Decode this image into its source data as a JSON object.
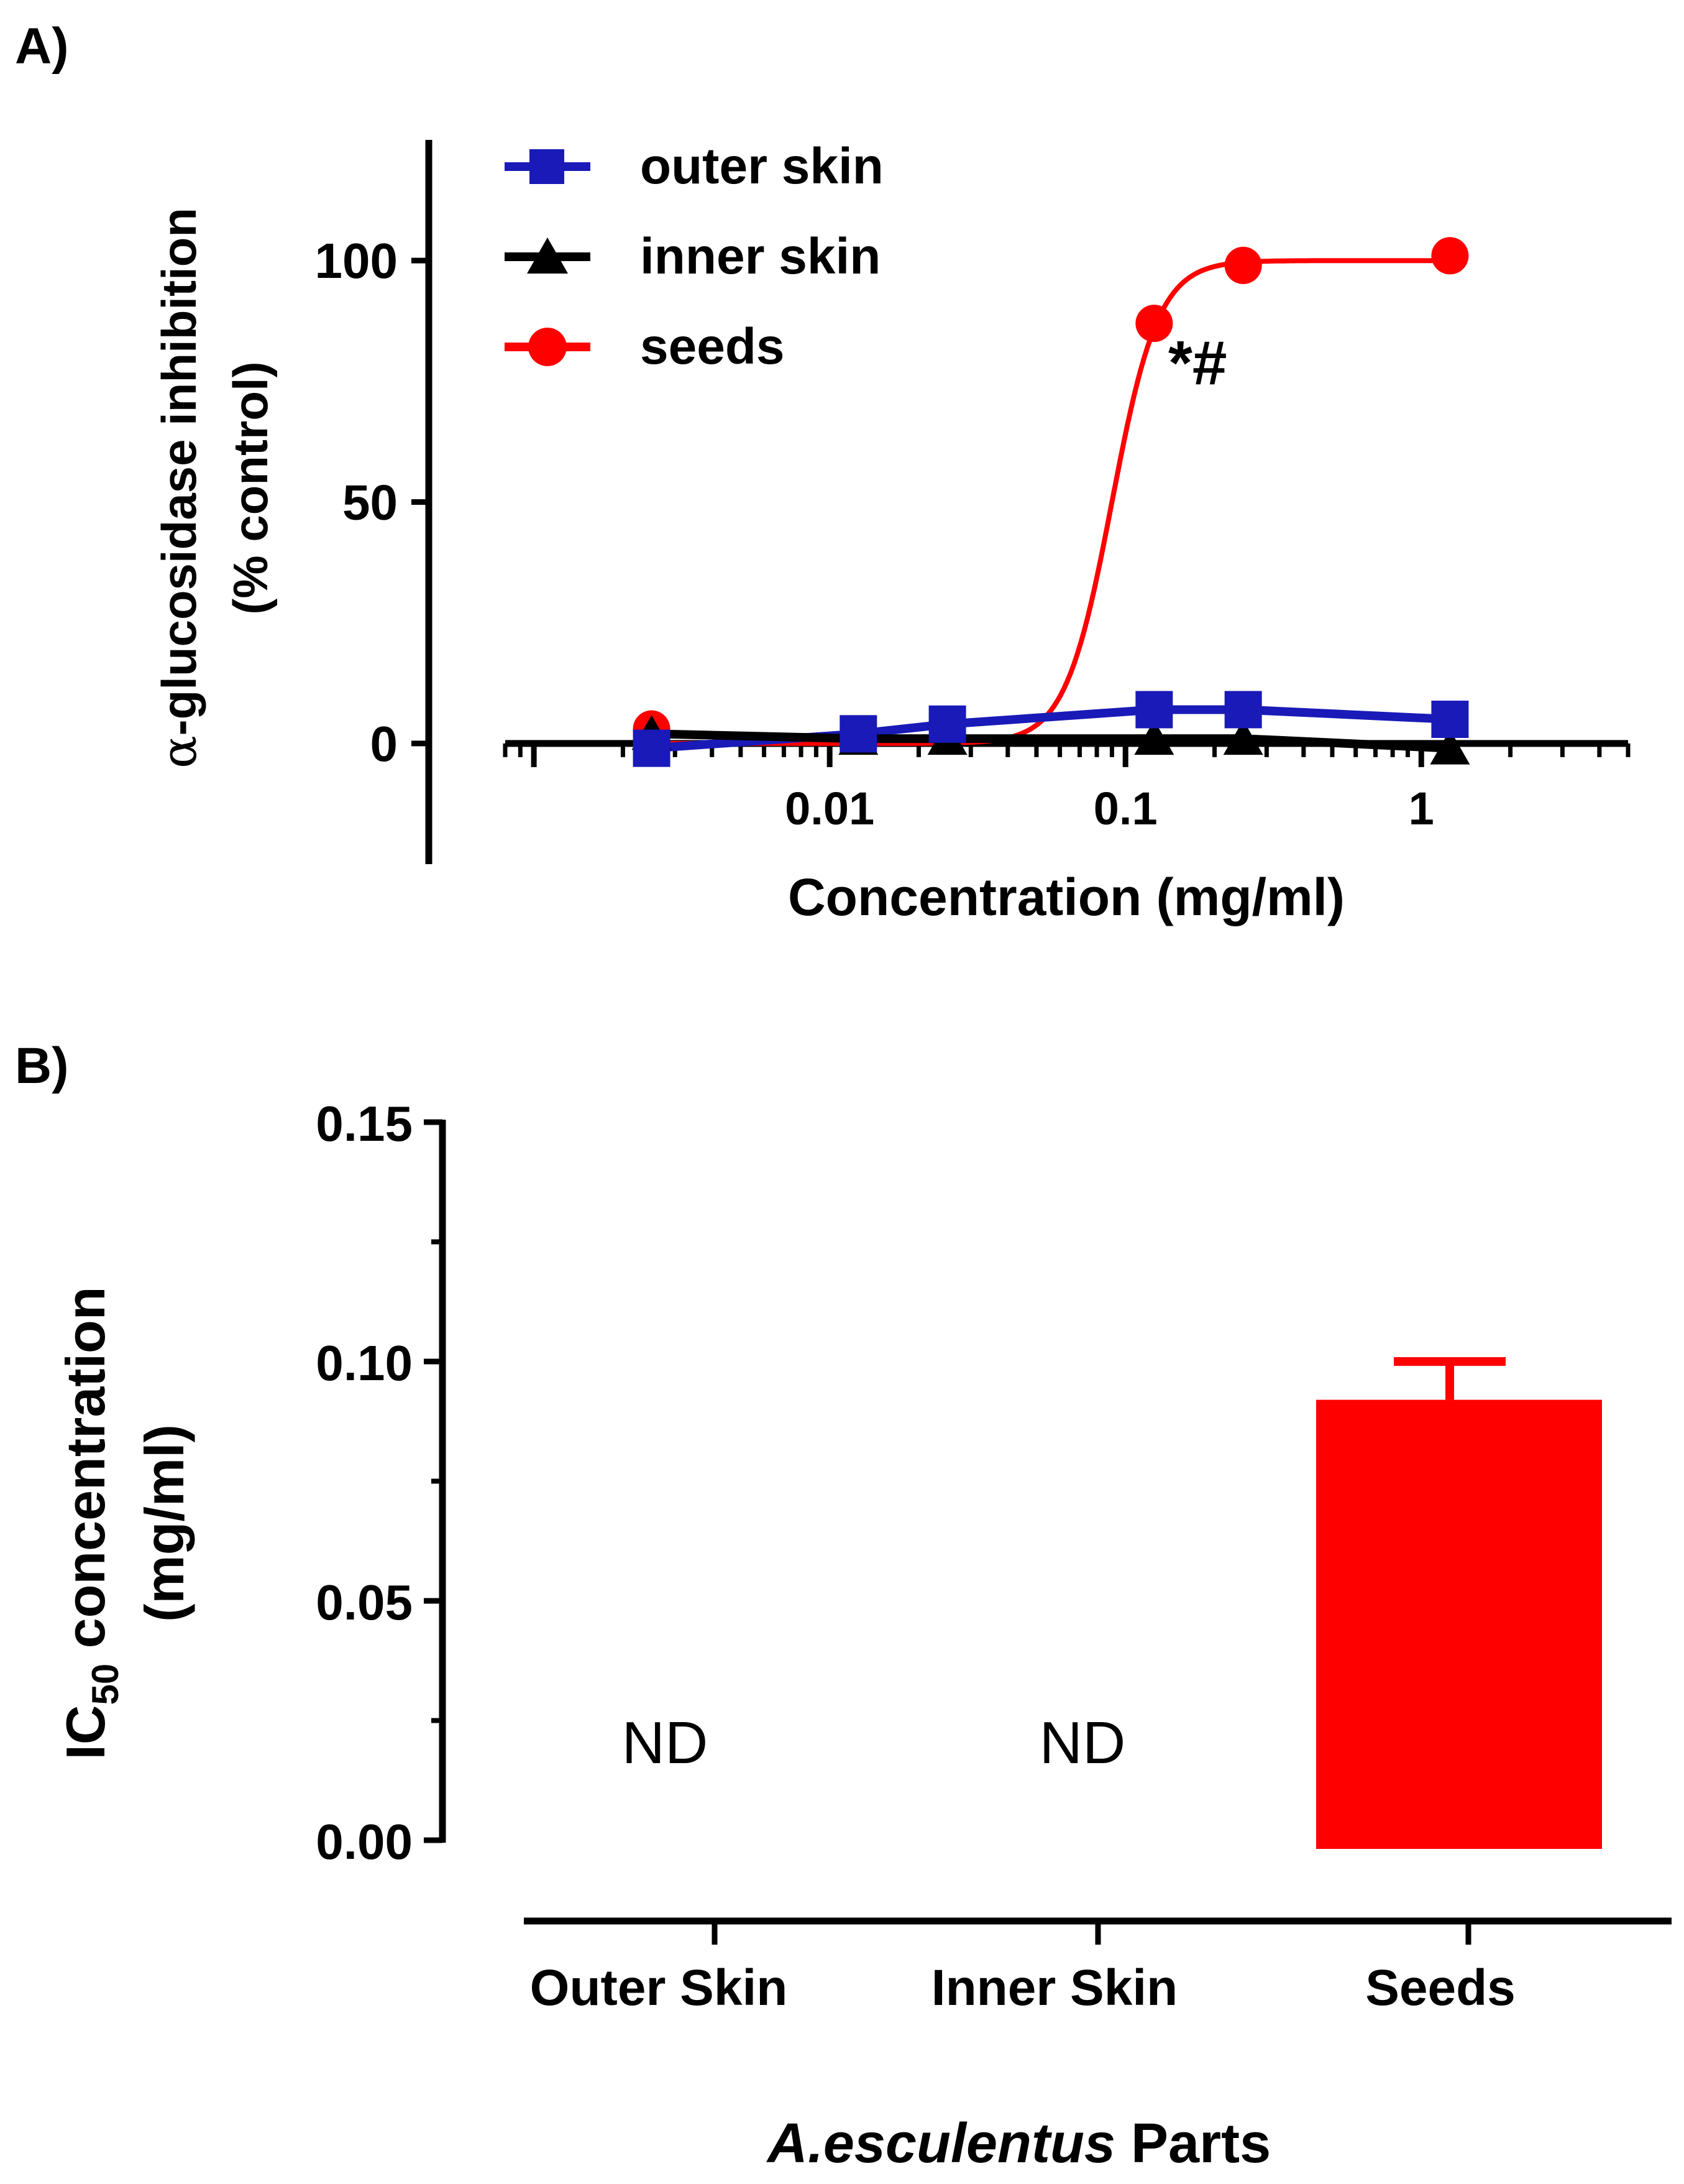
{
  "panel_a_label": "A)",
  "panel_b_label": "B)",
  "chart_data": [
    {
      "type": "line",
      "x_scale": "log",
      "xlabel": "Concentration (mg/ml)",
      "ylabel_line1_symbol": "α",
      "ylabel_line1_text": "-glucosidase inhibition",
      "ylabel_line2": "(% control)",
      "xlim": [
        0.0008,
        5
      ],
      "ylim": [
        -25,
        125
      ],
      "x_ticks": [
        0.01,
        0.1,
        1
      ],
      "x_tick_labels": [
        "0.01",
        "0.1",
        "1"
      ],
      "y_ticks": [
        0,
        50,
        100
      ],
      "y_tick_labels": [
        "0",
        "50",
        "100"
      ],
      "series": [
        {
          "name": "outer skin",
          "color": "#1a1ab8",
          "marker": "square",
          "x": [
            0.0025,
            0.0125,
            0.025,
            0.125,
            0.25,
            1.25
          ],
          "y": [
            -1,
            2,
            4,
            7,
            7,
            5
          ]
        },
        {
          "name": "inner skin",
          "color": "#000000",
          "marker": "triangle",
          "x": [
            0.0025,
            0.0125,
            0.025,
            0.125,
            0.25,
            1.25
          ],
          "y": [
            2,
            1,
            1,
            1,
            1,
            -1
          ]
        },
        {
          "name": "seeds",
          "color": "#ff0000",
          "marker": "circle",
          "x": [
            0.0025,
            0.125,
            0.25,
            1.25
          ],
          "y": [
            3,
            87,
            99,
            101
          ],
          "fit": {
            "model": "sigmoid",
            "bottom": 0,
            "top": 100,
            "ec50": 0.09,
            "hill": 5.5
          }
        }
      ],
      "annotation": "*#",
      "legend_position": "top-left"
    },
    {
      "type": "bar",
      "categories": [
        "Outer Skin",
        "Inner Skin",
        "Seeds"
      ],
      "values": [
        null,
        null,
        0.092
      ],
      "error": [
        null,
        null,
        0.008
      ],
      "bar_labels": [
        "ND",
        "ND",
        ""
      ],
      "colors": [
        "#ff0000",
        "#ff0000",
        "#ff0000"
      ],
      "ylabel_prefix": "IC",
      "ylabel_sub": "50",
      "ylabel_rest": " concentration",
      "ylabel_line2": "(mg/ml)",
      "xlabel_italic": "A.esculentus",
      "xlabel_rest": " Parts",
      "ylim": [
        0,
        0.15
      ],
      "y_ticks": [
        0,
        0.05,
        0.1,
        0.15
      ],
      "y_tick_labels": [
        "0.00",
        "0.05",
        "0.10",
        "0.15"
      ]
    }
  ]
}
